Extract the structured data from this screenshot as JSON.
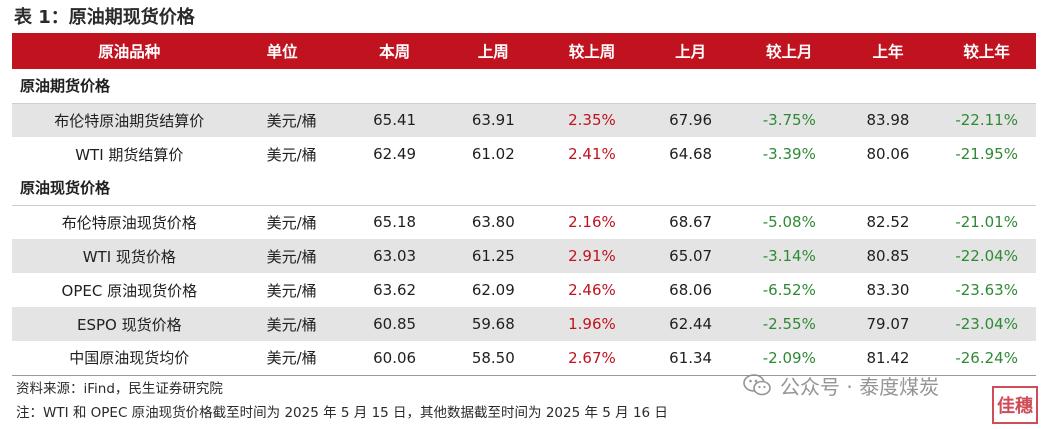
{
  "title": "表 1：原油期现货价格",
  "headers": [
    "原油品种",
    "单位",
    "本周",
    "上周",
    "较上周",
    "上月",
    "较上月",
    "上年",
    "较上年"
  ],
  "sections": [
    {
      "label": "原油期货价格",
      "rows": [
        {
          "name": "布伦特原油期货结算价",
          "unit": "美元/桶",
          "this_week": "65.41",
          "last_week": "63.91",
          "wow": "2.35%",
          "last_month": "67.96",
          "mom": "-3.75%",
          "last_year": "83.98",
          "yoy": "-22.11%"
        },
        {
          "name": "WTI 期货结算价",
          "unit": "美元/桶",
          "this_week": "62.49",
          "last_week": "61.02",
          "wow": "2.41%",
          "last_month": "64.68",
          "mom": "-3.39%",
          "last_year": "80.06",
          "yoy": "-21.95%"
        }
      ]
    },
    {
      "label": "原油现货价格",
      "rows": [
        {
          "name": "布伦特原油现货价格",
          "unit": "美元/桶",
          "this_week": "65.18",
          "last_week": "63.80",
          "wow": "2.16%",
          "last_month": "68.67",
          "mom": "-5.08%",
          "last_year": "82.52",
          "yoy": "-21.01%"
        },
        {
          "name": "WTI 现货价格",
          "unit": "美元/桶",
          "this_week": "63.03",
          "last_week": "61.25",
          "wow": "2.91%",
          "last_month": "65.07",
          "mom": "-3.14%",
          "last_year": "80.85",
          "yoy": "-22.04%"
        },
        {
          "name": "OPEC 原油现货价格",
          "unit": "美元/桶",
          "this_week": "63.62",
          "last_week": "62.09",
          "wow": "2.46%",
          "last_month": "68.06",
          "mom": "-6.52%",
          "last_year": "83.30",
          "yoy": "-23.63%"
        },
        {
          "name": "ESPO 现货价格",
          "unit": "美元/桶",
          "this_week": "60.85",
          "last_week": "59.68",
          "wow": "1.96%",
          "last_month": "62.44",
          "mom": "-2.55%",
          "last_year": "79.07",
          "yoy": "-23.04%"
        },
        {
          "name": "中国原油现货均价",
          "unit": "美元/桶",
          "this_week": "60.06",
          "last_week": "58.50",
          "wow": "2.67%",
          "last_month": "61.34",
          "mom": "-2.09%",
          "last_year": "81.42",
          "yoy": "-26.24%"
        }
      ]
    }
  ],
  "source": "资料来源：iFind，民生证券研究院",
  "note": "注：WTI 和 OPEC 原油现货价格截至时间为 2025 年 5 月 15 日，其他数据截至时间为 2025 年 5 月 16 日",
  "watermark": {
    "text": "公众号 · 泰度煤炭",
    "icon": "wechat-icon"
  },
  "stamp": "佳穗",
  "colors": {
    "header_bg": "#c1121f",
    "positive": "#c1121f",
    "negative": "#2f8a35",
    "alt_row": "#e4e4e4"
  }
}
